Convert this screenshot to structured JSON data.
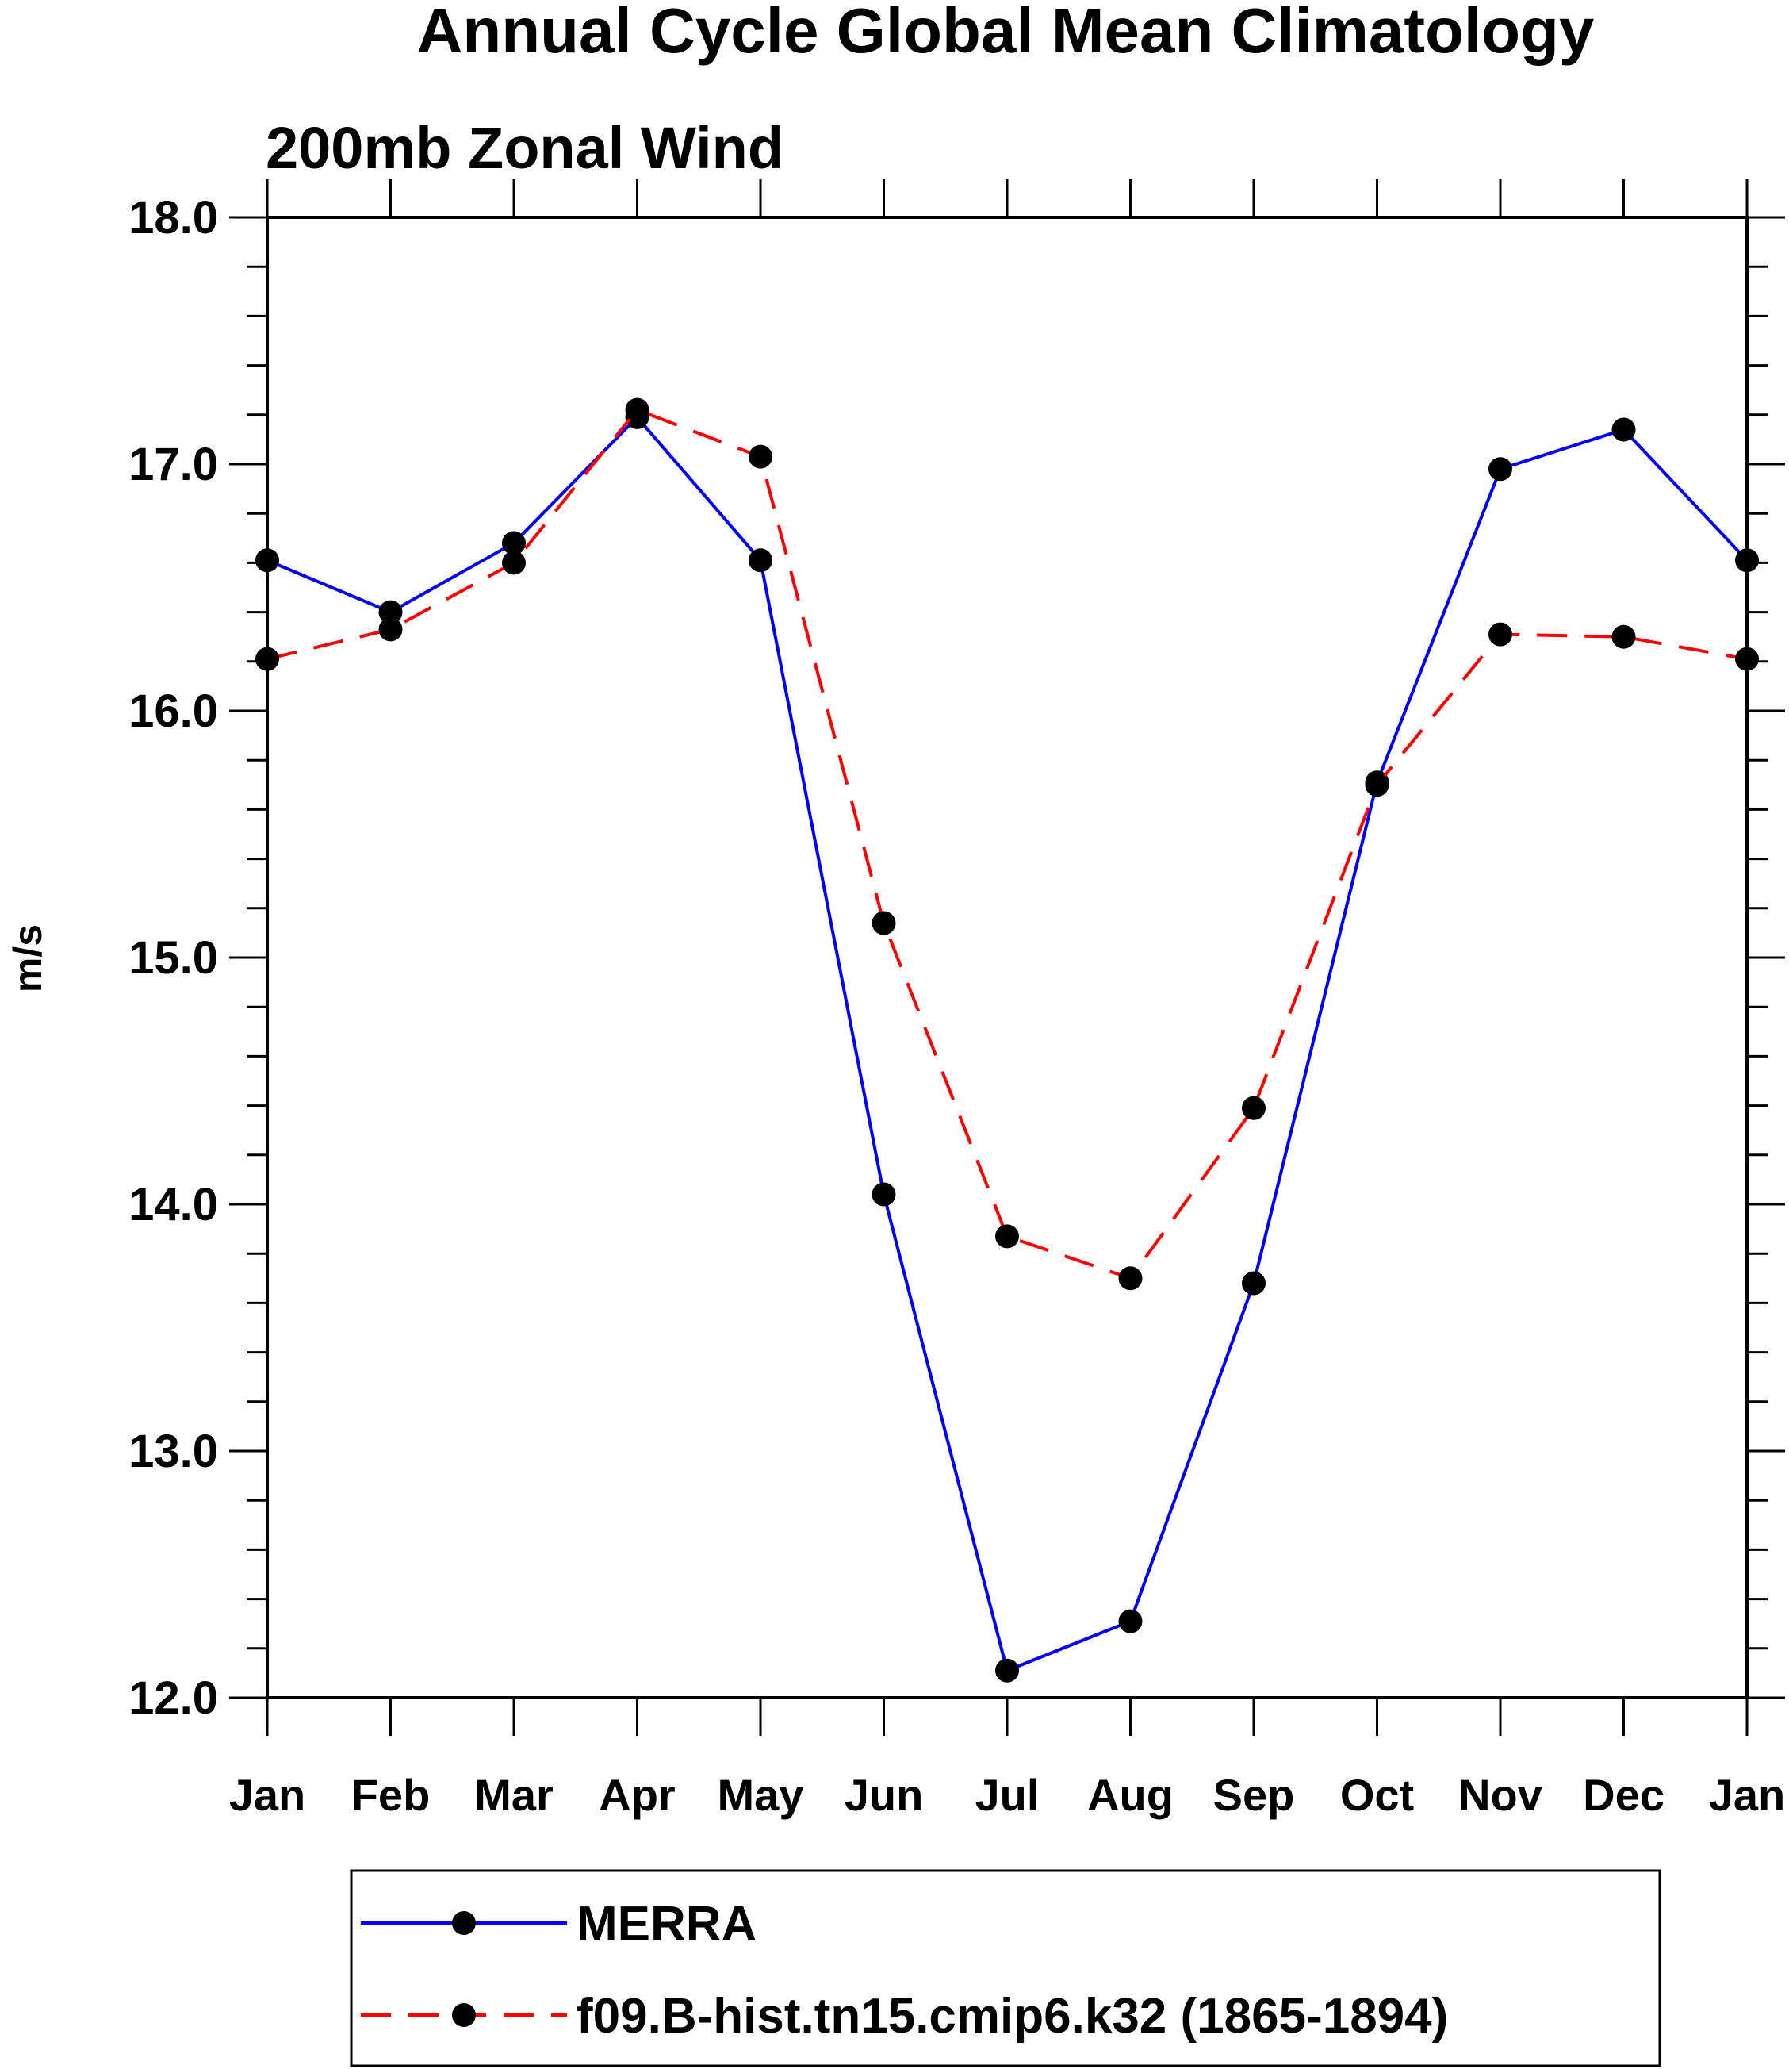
{
  "chart_data": {
    "type": "line",
    "title": "Annual Cycle Global Mean Climatology",
    "subtitle": "200mb Zonal Wind",
    "xlabel": "",
    "ylabel": "m/s",
    "categories": [
      "Jan",
      "Feb",
      "Mar",
      "Apr",
      "May",
      "Jun",
      "Jul",
      "Aug",
      "Sep",
      "Oct",
      "Nov",
      "Dec",
      "Jan"
    ],
    "ylim": [
      12.0,
      18.0
    ],
    "yticks": [
      "12.0",
      "13.0",
      "14.0",
      "15.0",
      "16.0",
      "17.0",
      "18.0"
    ],
    "grid": false,
    "legend_position": "bottom",
    "series": [
      {
        "name": "MERRA",
        "color": "#0000ff",
        "line_style": "solid",
        "marker": "filled-circle",
        "values": [
          16.61,
          16.4,
          16.68,
          17.19,
          16.61,
          14.04,
          12.11,
          12.31,
          13.68,
          15.71,
          16.98,
          17.14,
          16.61
        ]
      },
      {
        "name": "f09.B-hist.tn15.cmip6.k32 (1865-1894)",
        "color": "#ff0000",
        "line_style": "dashed",
        "marker": "filled-circle",
        "values": [
          16.21,
          16.33,
          16.6,
          17.22,
          17.03,
          15.14,
          13.87,
          13.7,
          14.39,
          15.7,
          16.31,
          16.3,
          16.21
        ]
      }
    ]
  }
}
